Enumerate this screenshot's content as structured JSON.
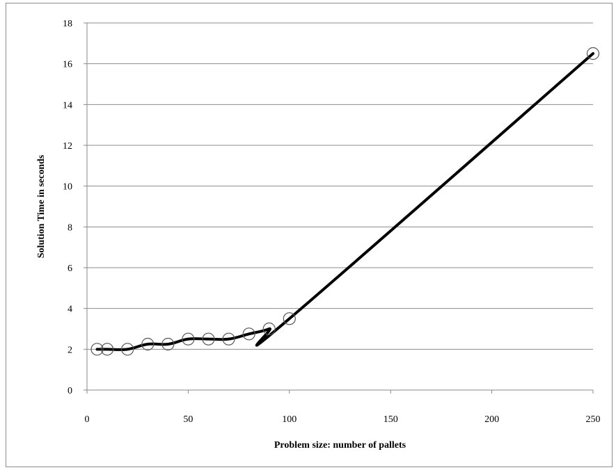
{
  "chart_data": {
    "type": "line",
    "title": "",
    "xlabel": "Problem size: number of pallets",
    "ylabel": "Solution Time in seconds",
    "xlim": [
      0,
      250
    ],
    "ylim": [
      0,
      18
    ],
    "x_ticks": [
      0,
      50,
      100,
      150,
      200,
      250
    ],
    "y_ticks": [
      0,
      2,
      4,
      6,
      8,
      10,
      12,
      14,
      16,
      18
    ],
    "grid": "horizontal",
    "legend": "none",
    "series": [
      {
        "x": [
          5,
          10,
          20,
          30,
          40,
          50,
          60,
          70,
          80,
          90,
          100,
          250
        ],
        "y": [
          2.0,
          2.0,
          2.0,
          2.25,
          2.25,
          2.5,
          2.5,
          2.5,
          2.75,
          3.0,
          3.5,
          16.5
        ],
        "color": "#000000",
        "marker": "open-circle"
      }
    ]
  }
}
